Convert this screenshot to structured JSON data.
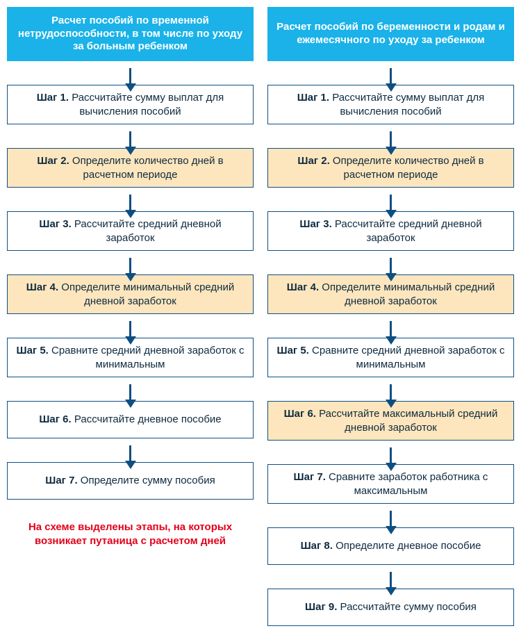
{
  "colors": {
    "header_bg": "#1ab2e8",
    "header_text": "#ffffff",
    "box_border": "#0e4f82",
    "box_text": "#0e2a3f",
    "highlight_bg": "#fde6bd",
    "plain_bg": "#ffffff",
    "arrow": "#0e4f82",
    "note_text": "#e2001a"
  },
  "note": "На схеме выделены этапы, на которых возникает путаница с расчетом дней",
  "left": {
    "header": "Расчет пособий по временной нетрудоспособности, в том числе по уходу за больным ребенком",
    "steps": [
      {
        "strong": "Шаг 1.",
        "text": " Рассчитайте сумму выплат для вычисления пособий",
        "highlight": false
      },
      {
        "strong": "Шаг 2.",
        "text": " Определите количество дней в расчетном периоде",
        "highlight": true
      },
      {
        "strong": "Шаг 3.",
        "text": " Рассчитайте средний дневной заработок",
        "highlight": false
      },
      {
        "strong": "Шаг 4.",
        "text": " Определите минимальный средний дневной заработок",
        "highlight": true
      },
      {
        "strong": "Шаг 5.",
        "text": " Сравните средний дневной заработок с минимальным",
        "highlight": false
      },
      {
        "strong": "Шаг 6.",
        "text": " Рассчитайте дневное пособие",
        "highlight": false
      },
      {
        "strong": "Шаг 7.",
        "text": " Определите сумму пособия",
        "highlight": false
      }
    ]
  },
  "right": {
    "header": "Расчет пособий по беременности и родам и ежемесячного по уходу за ребенком",
    "steps": [
      {
        "strong": "Шаг 1.",
        "text": " Рассчитайте сумму выплат для вычисления пособий",
        "highlight": false
      },
      {
        "strong": "Шаг 2.",
        "text": " Определите количество дней в расчетном периоде",
        "highlight": true
      },
      {
        "strong": "Шаг 3.",
        "text": " Рассчитайте средний дневной заработок",
        "highlight": false
      },
      {
        "strong": "Шаг 4.",
        "text": " Определите минимальный средний дневной заработок",
        "highlight": true
      },
      {
        "strong": "Шаг 5.",
        "text": " Сравните средний дневной заработок с минимальным",
        "highlight": false
      },
      {
        "strong": "Шаг 6.",
        "text": " Рассчитайте максимальный средний дневной заработок",
        "highlight": true
      },
      {
        "strong": "Шаг 7.",
        "text": " Сравните заработок работника с максимальным",
        "highlight": false
      },
      {
        "strong": "Шаг 8.",
        "text": " Определите дневное пособие",
        "highlight": false
      },
      {
        "strong": "Шаг 9.",
        "text": " Рассчитайте сумму пособия",
        "highlight": false
      }
    ]
  }
}
